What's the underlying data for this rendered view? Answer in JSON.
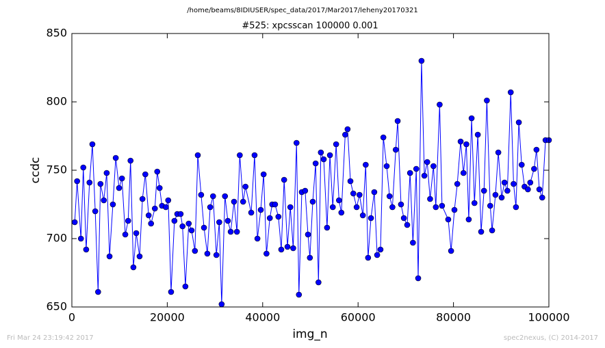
{
  "chart_data": {
    "type": "line",
    "suptitle": "/home/beams/8IDIUSER/spec_data/2017/Mar2017/leheny20170321",
    "title": "#525: xpcsscan 100000 0.001",
    "xlabel": "img_n",
    "ylabel": "ccdc",
    "color": "#0000ff",
    "marker": "circle",
    "xlim": [
      0,
      100000
    ],
    "ylim": [
      650,
      850
    ],
    "xticks": [
      0,
      20000,
      40000,
      60000,
      80000,
      100000
    ],
    "yticks": [
      650,
      700,
      750,
      800,
      850
    ],
    "x": [
      600,
      1100,
      1900,
      2400,
      3000,
      3700,
      4300,
      4900,
      5500,
      6000,
      6700,
      7300,
      7900,
      8600,
      9200,
      9900,
      10500,
      11200,
      11800,
      12300,
      12900,
      13500,
      14200,
      14800,
      15400,
      16100,
      16600,
      17400,
      17900,
      18400,
      18900,
      19700,
      20200,
      20800,
      21500,
      22100,
      22800,
      23200,
      23800,
      24500,
      25100,
      25800,
      26400,
      27100,
      27700,
      28400,
      29000,
      29600,
      30300,
      30900,
      31400,
      32100,
      32700,
      33300,
      34000,
      34600,
      35200,
      35900,
      36400,
      37600,
      38300,
      38900,
      39600,
      40200,
      40800,
      41500,
      42000,
      42600,
      43300,
      43900,
      44500,
      45200,
      45800,
      46400,
      47100,
      47600,
      48200,
      48900,
      49500,
      49900,
      50500,
      51100,
      51700,
      52200,
      52800,
      53500,
      54100,
      54700,
      55400,
      56000,
      56500,
      57300,
      57800,
      58400,
      59000,
      59700,
      60300,
      61000,
      61600,
      62100,
      62700,
      63400,
      64000,
      64700,
      65300,
      66000,
      66600,
      67200,
      67900,
      68300,
      69000,
      69600,
      70300,
      70900,
      71500,
      72200,
      72600,
      73300,
      73900,
      74500,
      75100,
      75800,
      76300,
      77100,
      77600,
      78900,
      79500,
      80200,
      80800,
      81500,
      82100,
      82700,
      83200,
      83800,
      84400,
      85100,
      85800,
      86400,
      87000,
      87700,
      88100,
      88800,
      89400,
      90100,
      90700,
      91300,
      92000,
      92600,
      93100,
      93700,
      94300,
      94900,
      95600,
      96100,
      96900,
      97400,
      98000,
      98600,
      99300,
      100000
    ],
    "values": [
      712,
      742,
      700,
      752,
      692,
      741,
      769,
      720,
      661,
      740,
      728,
      748,
      687,
      725,
      759,
      737,
      744,
      703,
      713,
      757,
      679,
      704,
      687,
      729,
      747,
      717,
      711,
      722,
      749,
      737,
      724,
      723,
      728,
      661,
      713,
      718,
      718,
      709,
      665,
      711,
      706,
      691,
      761,
      732,
      708,
      689,
      723,
      731,
      688,
      712,
      652,
      731,
      713,
      705,
      727,
      705,
      761,
      727,
      738,
      719,
      761,
      700,
      721,
      747,
      689,
      715,
      725,
      725,
      716,
      692,
      743,
      694,
      723,
      693,
      770,
      659,
      734,
      735,
      703,
      686,
      727,
      755,
      668,
      763,
      758,
      708,
      761,
      723,
      769,
      728,
      719,
      776,
      780,
      742,
      733,
      723,
      732,
      717,
      754,
      686,
      715,
      734,
      688,
      692,
      774,
      753,
      731,
      723,
      765,
      786,
      725,
      715,
      710,
      748,
      697,
      751,
      671,
      830,
      746,
      756,
      729,
      753,
      723,
      798,
      724,
      714,
      691,
      721,
      740,
      771,
      748,
      769,
      714,
      788,
      726,
      776,
      705,
      735,
      801,
      724,
      706,
      732,
      763,
      730,
      741,
      735,
      807,
      740,
      723,
      785,
      754,
      738,
      736,
      741,
      751,
      765,
      736,
      730,
      772,
      772
    ]
  },
  "footer": {
    "timestamp": "Fri Mar 24 23:19:42 2017",
    "credit": "spec2nexus, (C) 2014-2017"
  }
}
